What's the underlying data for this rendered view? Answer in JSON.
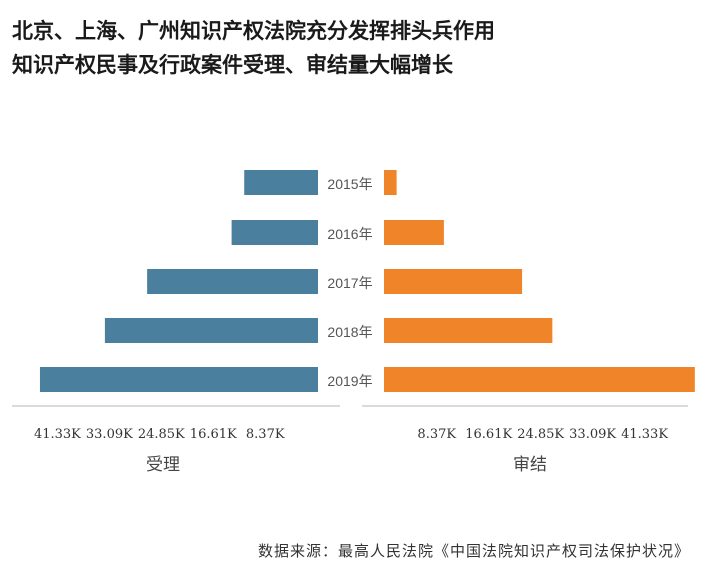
{
  "title": {
    "line1": "北京、上海、广州知识产权法院充分发挥排头兵作用",
    "line2": "知识产权民事及行政案件受理、审结量大幅增长"
  },
  "source": "数据来源：最高人民法院《中国法院知识产权司法保护状况》",
  "chart_data": {
    "type": "bar",
    "orientation": "horizontal-butterfly",
    "categories": [
      "2015年",
      "2016年",
      "2017年",
      "2018年",
      "2019年"
    ],
    "series": [
      {
        "name": "受理",
        "values": [
          11700,
          13700,
          27100,
          33800,
          44100
        ],
        "color": "#4a7f9e"
      },
      {
        "name": "审结",
        "values": [
          2000,
          9500,
          21900,
          26700,
          49300
        ],
        "color": "#f08428"
      }
    ],
    "left_axis": {
      "label": "受理",
      "ticks": [
        "41.33K",
        "33.09K",
        "24.85K",
        "16.61K",
        "8.37K"
      ],
      "tick_values": [
        41330,
        33090,
        24850,
        16610,
        8370
      ]
    },
    "right_axis": {
      "label": "审结",
      "ticks": [
        "8.37K",
        "16.61K",
        "24.85K",
        "33.09K",
        "41.33K"
      ],
      "tick_values": [
        8370,
        16610,
        24850,
        33090,
        41330
      ]
    },
    "grid": false,
    "legend": "none"
  }
}
